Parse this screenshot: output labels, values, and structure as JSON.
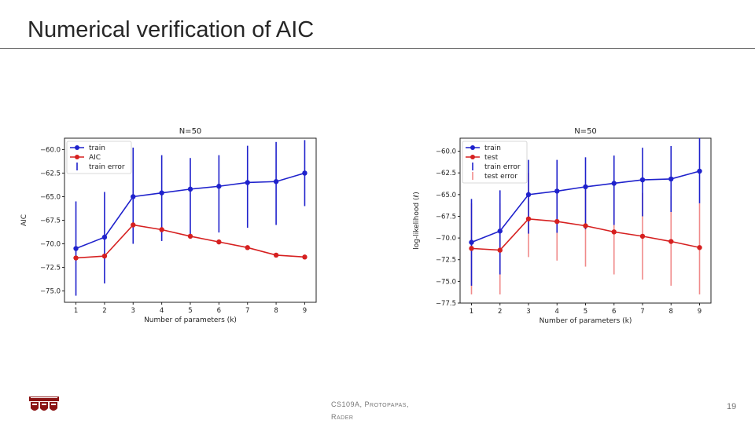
{
  "slide": {
    "title": "Numerical verification of AIC",
    "page_number": "19"
  },
  "footer": {
    "line1_prefix": "CS109A, P",
    "line1_sc": "ROTOPAPAS",
    "line1_suffix": ",",
    "line2_prefix": "R",
    "line2_sc": "ADER"
  },
  "chart_data": [
    {
      "type": "line",
      "title": "N=50",
      "xlabel": "Number of parameters (k)",
      "ylabel": "AIC",
      "x": [
        1,
        2,
        3,
        4,
        5,
        6,
        7,
        8,
        9
      ],
      "ylim": [
        -76.2,
        -58.8
      ],
      "yticks": [
        -60.0,
        -62.5,
        -65.0,
        -67.5,
        -70.0,
        -72.5,
        -75.0
      ],
      "ytick_labels": [
        "−60.0",
        "−62.5",
        "−65.0",
        "−67.5",
        "−70.0",
        "−72.5",
        "−75.0"
      ],
      "legend": {
        "position": "top-left",
        "labels": [
          "train",
          "AIC",
          "train error"
        ]
      },
      "series": [
        {
          "name": "train",
          "color": "#1f22cc",
          "values": [
            -70.5,
            -69.3,
            -65.0,
            -64.6,
            -64.2,
            -63.9,
            -63.5,
            -63.4,
            -62.5
          ]
        },
        {
          "name": "AIC",
          "color": "#d62020",
          "values": [
            -71.5,
            -71.3,
            -68.0,
            -68.5,
            -69.2,
            -69.8,
            -70.4,
            -71.2,
            -71.4
          ]
        }
      ],
      "error_bars": [
        {
          "name": "train error",
          "color": "#1f22cc",
          "low": [
            -75.5,
            -74.2,
            -70.0,
            -69.7,
            -69.3,
            -68.8,
            -68.3,
            -68.0,
            -66.0
          ],
          "high": [
            -65.5,
            -64.5,
            -59.8,
            -60.6,
            -60.9,
            -60.6,
            -59.6,
            -59.2,
            -59.0
          ]
        }
      ]
    },
    {
      "type": "line",
      "title": "N=50",
      "xlabel": "Number of parameters (k)",
      "ylabel": "log-likelihood (ℓ)",
      "x": [
        1,
        2,
        3,
        4,
        5,
        6,
        7,
        8,
        9
      ],
      "ylim": [
        -77.5,
        -58.5
      ],
      "yticks": [
        -60.0,
        -62.5,
        -65.0,
        -67.5,
        -70.0,
        -72.5,
        -75.0,
        -77.5
      ],
      "ytick_labels": [
        "−60.0",
        "−62.5",
        "−65.0",
        "−67.5",
        "−70.0",
        "−72.5",
        "−75.0",
        "−77.5"
      ],
      "legend": {
        "position": "top-left",
        "labels": [
          "train",
          "test",
          "train error",
          "test error"
        ]
      },
      "series": [
        {
          "name": "train",
          "color": "#1f22cc",
          "values": [
            -70.5,
            -69.2,
            -65.0,
            -64.6,
            -64.1,
            -63.7,
            -63.3,
            -63.2,
            -62.3
          ]
        },
        {
          "name": "test",
          "color": "#d62020",
          "values": [
            -71.2,
            -71.4,
            -67.8,
            -68.1,
            -68.6,
            -69.3,
            -69.8,
            -70.4,
            -71.1
          ]
        }
      ],
      "error_bars": [
        {
          "name": "train error",
          "color": "#1f22cc",
          "low": [
            -75.5,
            -74.2,
            -69.5,
            -69.4,
            -69.0,
            -68.5,
            -67.5,
            -67.0,
            -66.0
          ],
          "high": [
            -65.5,
            -64.5,
            -61.0,
            -61.0,
            -60.7,
            -60.5,
            -59.6,
            -59.4,
            -58.5
          ]
        },
        {
          "name": "test error",
          "color": "#f08a8a",
          "low": [
            -76.5,
            -76.5,
            -72.2,
            -72.6,
            -73.3,
            -74.2,
            -74.8,
            -75.5,
            -76.5
          ],
          "high": [
            -66.0,
            -66.0,
            -62.5,
            -63.5,
            -63.9,
            -64.4,
            -64.8,
            -65.2,
            -66.0
          ]
        }
      ]
    }
  ]
}
